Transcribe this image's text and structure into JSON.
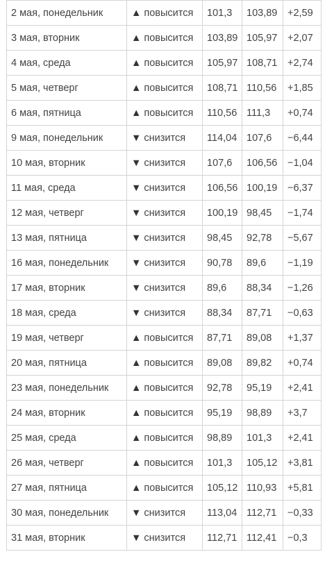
{
  "rows": [
    {
      "date": "2 мая, понедельник",
      "arrow": "▲",
      "direction": "повысится",
      "open": "101,3",
      "close": "103,89",
      "change": "+2,59"
    },
    {
      "date": "3 мая, вторник",
      "arrow": "▲",
      "direction": "повысится",
      "open": "103,89",
      "close": "105,97",
      "change": "+2,07"
    },
    {
      "date": "4 мая, среда",
      "arrow": "▲",
      "direction": "повысится",
      "open": "105,97",
      "close": "108,71",
      "change": "+2,74"
    },
    {
      "date": "5 мая, четверг",
      "arrow": "▲",
      "direction": "повысится",
      "open": "108,71",
      "close": "110,56",
      "change": "+1,85"
    },
    {
      "date": "6 мая, пятница",
      "arrow": "▲",
      "direction": "повысится",
      "open": "110,56",
      "close": "111,3",
      "change": "+0,74"
    },
    {
      "date": "9 мая, понедельник",
      "arrow": "▼",
      "direction": "снизится",
      "open": "114,04",
      "close": "107,6",
      "change": "−6,44"
    },
    {
      "date": "10 мая, вторник",
      "arrow": "▼",
      "direction": "снизится",
      "open": "107,6",
      "close": "106,56",
      "change": "−1,04"
    },
    {
      "date": "11 мая, среда",
      "arrow": "▼",
      "direction": "снизится",
      "open": "106,56",
      "close": "100,19",
      "change": "−6,37"
    },
    {
      "date": "12 мая, четверг",
      "arrow": "▼",
      "direction": "снизится",
      "open": "100,19",
      "close": "98,45",
      "change": "−1,74"
    },
    {
      "date": "13 мая, пятница",
      "arrow": "▼",
      "direction": "снизится",
      "open": "98,45",
      "close": "92,78",
      "change": "−5,67"
    },
    {
      "date": "16 мая, понедельник",
      "arrow": "▼",
      "direction": "снизится",
      "open": "90,78",
      "close": "89,6",
      "change": "−1,19"
    },
    {
      "date": "17 мая, вторник",
      "arrow": "▼",
      "direction": "снизится",
      "open": "89,6",
      "close": "88,34",
      "change": "−1,26"
    },
    {
      "date": "18 мая, среда",
      "arrow": "▼",
      "direction": "снизится",
      "open": "88,34",
      "close": "87,71",
      "change": "−0,63"
    },
    {
      "date": "19 мая, четверг",
      "arrow": "▲",
      "direction": "повысится",
      "open": "87,71",
      "close": "89,08",
      "change": "+1,37"
    },
    {
      "date": "20 мая, пятница",
      "arrow": "▲",
      "direction": "повысится",
      "open": "89,08",
      "close": "89,82",
      "change": "+0,74"
    },
    {
      "date": "23 мая, понедельник",
      "arrow": "▲",
      "direction": "повысится",
      "open": "92,78",
      "close": "95,19",
      "change": "+2,41"
    },
    {
      "date": "24 мая, вторник",
      "arrow": "▲",
      "direction": "повысится",
      "open": "95,19",
      "close": "98,89",
      "change": "+3,7"
    },
    {
      "date": "25 мая, среда",
      "arrow": "▲",
      "direction": "повысится",
      "open": "98,89",
      "close": "101,3",
      "change": "+2,41"
    },
    {
      "date": "26 мая, четверг",
      "arrow": "▲",
      "direction": "повысится",
      "open": "101,3",
      "close": "105,12",
      "change": "+3,81"
    },
    {
      "date": "27 мая, пятница",
      "arrow": "▲",
      "direction": "повысится",
      "open": "105,12",
      "close": "110,93",
      "change": "+5,81"
    },
    {
      "date": "30 мая, понедельник",
      "arrow": "▼",
      "direction": "снизится",
      "open": "113,04",
      "close": "112,71",
      "change": "−0,33"
    },
    {
      "date": "31 мая, вторник",
      "arrow": "▼",
      "direction": "снизится",
      "open": "112,71",
      "close": "112,41",
      "change": "−0,3"
    }
  ]
}
